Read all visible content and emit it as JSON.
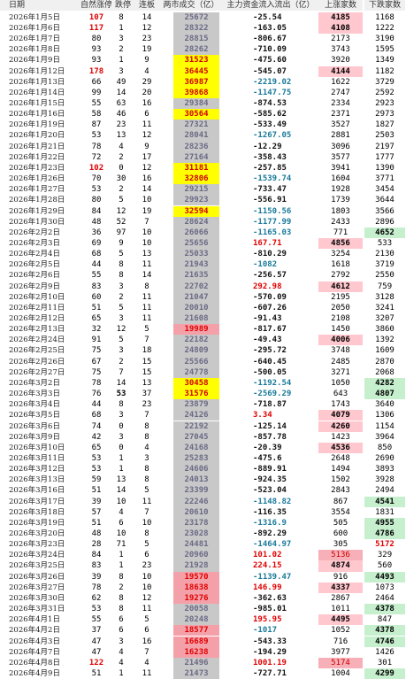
{
  "headers": [
    "日期",
    "自然涨停",
    "跌停",
    "连板",
    "两市成交（亿）",
    "主力资金流入流出（亿）",
    "上涨家数",
    "下跌家数"
  ],
  "rows": [
    {
      "date": "2026年1月5日",
      "lim": "107",
      "dn": "8",
      "lb": "14",
      "amt": "25672",
      "flow": "-25.54",
      "up": "4185",
      "down": "1168",
      "lim_red": true,
      "up_hl": "pink",
      "up_bold": true
    },
    {
      "date": "2026年1月6日",
      "lim": "117",
      "dn": "1",
      "lb": "12",
      "amt": "28322",
      "flow": "-163.05",
      "up": "4108",
      "down": "1222",
      "lim_red": true,
      "up_hl": "pink",
      "up_bold": true
    },
    {
      "date": "2026年1月7日",
      "lim": "80",
      "dn": "3",
      "lb": "23",
      "amt": "28815",
      "flow": "-806.67",
      "flow_bold": true,
      "up": "2173",
      "down": "3190"
    },
    {
      "date": "2026年1月8日",
      "lim": "93",
      "dn": "2",
      "lb": "19",
      "amt": "28262",
      "flow": "-710.09",
      "flow_bold": true,
      "up": "3743",
      "down": "1595"
    },
    {
      "date": "2026年1月9日",
      "lim": "93",
      "dn": "1",
      "lb": "9",
      "amt": "31523",
      "amt_hl": "yellow",
      "flow": "-475.60",
      "up": "3920",
      "down": "1349"
    },
    {
      "date": "2026年1月12日",
      "lim": "178",
      "dn": "3",
      "lb": "4",
      "amt": "36445",
      "amt_hl": "yellow",
      "flow": "-545.07",
      "flow_bold": true,
      "up": "4144",
      "down": "1182",
      "lim_red": true,
      "up_hl": "pink",
      "up_bold": true
    },
    {
      "date": "2026年1月13日",
      "lim": "66",
      "dn": "49",
      "lb": "29",
      "amt": "36987",
      "amt_hl": "yellow",
      "flow": "-2219.02",
      "flow_class": "negbig",
      "up": "1622",
      "down": "3729"
    },
    {
      "date": "2026年1月14日",
      "lim": "99",
      "dn": "14",
      "lb": "20",
      "amt": "39868",
      "amt_hl": "yellow",
      "flow": "-1147.75",
      "flow_class": "negbig",
      "up": "2747",
      "down": "2592"
    },
    {
      "date": "2026年1月15日",
      "lim": "55",
      "dn": "63",
      "lb": "16",
      "amt": "29384",
      "flow": "-874.53",
      "flow_bold": true,
      "up": "2334",
      "down": "2923"
    },
    {
      "date": "2026年1月16日",
      "lim": "58",
      "dn": "46",
      "lb": "6",
      "amt": "30564",
      "amt_hl": "yellow",
      "flow": "-585.62",
      "flow_bold": true,
      "up": "2371",
      "down": "2973"
    },
    {
      "date": "2026年1月19日",
      "lim": "87",
      "dn": "23",
      "lb": "11",
      "amt": "27321",
      "flow": "-533.49",
      "flow_bold": true,
      "up": "3527",
      "down": "1827"
    },
    {
      "date": "2026年1月20日",
      "lim": "53",
      "dn": "13",
      "lb": "12",
      "amt": "28041",
      "flow": "-1267.05",
      "flow_class": "negbig",
      "up": "2881",
      "down": "2503"
    },
    {
      "date": "2026年1月21日",
      "lim": "78",
      "dn": "4",
      "lb": "9",
      "amt": "28236",
      "flow": "-12.29",
      "up": "3096",
      "down": "2197"
    },
    {
      "date": "2026年1月22日",
      "lim": "72",
      "dn": "2",
      "lb": "17",
      "amt": "27164",
      "flow": "-358.43",
      "up": "3577",
      "down": "1777"
    },
    {
      "date": "2026年1月23日",
      "lim": "102",
      "dn": "0",
      "lb": "12",
      "amt": "31181",
      "amt_hl": "yellow",
      "flow": "-257.85",
      "up": "3941",
      "down": "1390",
      "lim_red": true
    },
    {
      "date": "2026年1月26日",
      "lim": "70",
      "dn": "30",
      "lb": "16",
      "amt": "32806",
      "amt_hl": "yellow",
      "flow": "-1539.74",
      "flow_class": "negbig",
      "up": "1604",
      "down": "3771"
    },
    {
      "date": "2026年1月27日",
      "lim": "53",
      "dn": "2",
      "lb": "14",
      "amt": "29215",
      "flow": "-733.47",
      "flow_bold": true,
      "up": "1928",
      "down": "3454"
    },
    {
      "date": "2026年1月28日",
      "lim": "80",
      "dn": "5",
      "lb": "10",
      "amt": "29923",
      "flow": "-556.91",
      "flow_bold": true,
      "up": "1739",
      "down": "3644"
    },
    {
      "date": "2026年1月29日",
      "lim": "84",
      "dn": "12",
      "lb": "19",
      "amt": "32594",
      "amt_hl": "yellow",
      "flow": "-1150.56",
      "flow_class": "negbig",
      "up": "1803",
      "down": "3566"
    },
    {
      "date": "2026年1月30日",
      "lim": "48",
      "dn": "52",
      "lb": "7",
      "amt": "28624",
      "flow": "-1177.99",
      "flow_class": "negbig",
      "up": "2433",
      "down": "2896"
    },
    {
      "date": "2026年2月2日",
      "lim": "36",
      "dn": "97",
      "lb": "10",
      "amt": "26066",
      "flow": "-1165.03",
      "flow_class": "negbig",
      "up": "771",
      "down": "4652",
      "down_hl": "green",
      "down_bold": true
    },
    {
      "date": "2026年2月3日",
      "lim": "69",
      "dn": "9",
      "lb": "10",
      "amt": "25656",
      "flow": "167.71",
      "flow_class": "posflow",
      "up": "4856",
      "down": "533",
      "up_hl": "pink",
      "up_bold": true
    },
    {
      "date": "2026年2月4日",
      "lim": "68",
      "dn": "5",
      "lb": "13",
      "amt": "25033",
      "flow": "-810.29",
      "flow_bold": true,
      "up": "3254",
      "down": "2130"
    },
    {
      "date": "2026年2月5日",
      "lim": "44",
      "dn": "8",
      "lb": "11",
      "amt": "21943",
      "flow": "-1082",
      "flow_class": "negbig",
      "up": "1618",
      "down": "3719"
    },
    {
      "date": "2026年2月6日",
      "lim": "55",
      "dn": "8",
      "lb": "14",
      "amt": "21635",
      "flow": "-256.57",
      "up": "2792",
      "down": "2550"
    },
    {
      "date": "2026年2月9日",
      "lim": "83",
      "dn": "3",
      "lb": "8",
      "amt": "22702",
      "flow": "292.98",
      "flow_class": "posflow",
      "up": "4612",
      "down": "759",
      "up_hl": "pink",
      "up_bold": true
    },
    {
      "date": "2026年2月10日",
      "lim": "60",
      "dn": "2",
      "lb": "11",
      "amt": "21047",
      "flow": "-570.09",
      "flow_bold": true,
      "up": "2195",
      "down": "3128"
    },
    {
      "date": "2026年2月11日",
      "lim": "51",
      "dn": "5",
      "lb": "11",
      "amt": "20010",
      "flow": "-607.26",
      "flow_bold": true,
      "up": "2050",
      "down": "3241"
    },
    {
      "date": "2026年2月12日",
      "lim": "65",
      "dn": "3",
      "lb": "11",
      "amt": "21608",
      "flow": "-91.43",
      "up": "2108",
      "down": "3207"
    },
    {
      "date": "2026年2月13日",
      "lim": "32",
      "dn": "12",
      "lb": "5",
      "amt": "19989",
      "amt_hl": "lpink",
      "flow": "-817.67",
      "up": "1450",
      "down": "3860"
    },
    {
      "date": "2026年2月24日",
      "lim": "91",
      "dn": "5",
      "lb": "7",
      "amt": "22182",
      "flow": "-49.43",
      "up": "4006",
      "down": "1392",
      "up_hl": "pink",
      "up_bold": true
    },
    {
      "date": "2026年2月25日",
      "lim": "75",
      "dn": "3",
      "lb": "18",
      "amt": "24809",
      "flow": "-295.72",
      "up": "3748",
      "down": "1609"
    },
    {
      "date": "2026年2月26日",
      "lim": "67",
      "dn": "2",
      "lb": "15",
      "amt": "25566",
      "flow": "-640.45",
      "flow_bold": true,
      "up": "2485",
      "down": "2870"
    },
    {
      "date": "2026年2月27日",
      "lim": "75",
      "dn": "7",
      "lb": "15",
      "amt": "24778",
      "flow": "-500.05",
      "up": "3271",
      "down": "2068"
    },
    {
      "date": "2026年3月2日",
      "lim": "78",
      "dn": "14",
      "lb": "13",
      "amt": "30458",
      "amt_hl": "yellow",
      "flow": "-1192.54",
      "flow_class": "negbig",
      "up": "1050",
      "down": "4282",
      "down_hl": "green",
      "down_bold": true
    },
    {
      "date": "2026年3月3日",
      "lim": "76",
      "dn": "53",
      "lb": "37",
      "amt": "31576",
      "amt_hl": "yellow",
      "flow": "-2569.29",
      "flow_class": "negbig",
      "up": "643",
      "down": "4807",
      "dn_bold": true,
      "down_hl": "green",
      "down_bold": true
    },
    {
      "date": "2026年3月4日",
      "lim": "44",
      "dn": "8",
      "lb": "23",
      "amt": "23879",
      "flow": "-718.87",
      "flow_bold": true,
      "up": "1743",
      "down": "3640"
    },
    {
      "date": "2026年3月5日",
      "lim": "68",
      "dn": "3",
      "lb": "7",
      "amt": "24126",
      "flow": "3.34",
      "flow_class": "posflow",
      "up": "4079",
      "down": "1306",
      "up_hl": "pink",
      "up_bold": true
    },
    {
      "date": "2026年3月6日",
      "lim": "74",
      "dn": "0",
      "lb": "8",
      "amt": "22192",
      "flow": "-125.14",
      "up": "4260",
      "down": "1154",
      "up_hl": "pink",
      "up_bold": true
    },
    {
      "date": "2026年3月9日",
      "lim": "42",
      "dn": "3",
      "lb": "8",
      "amt": "27045",
      "flow": "-857.78",
      "flow_bold": true,
      "up": "1423",
      "down": "3964"
    },
    {
      "date": "2026年3月10日",
      "lim": "65",
      "dn": "0",
      "lb": "4",
      "amt": "24168",
      "flow": "-20.39",
      "up": "4536",
      "down": "850",
      "up_hl": "pink",
      "up_bold": true
    },
    {
      "date": "2026年3月11日",
      "lim": "53",
      "dn": "1",
      "lb": "3",
      "amt": "25283",
      "flow": "-475.6",
      "up": "2648",
      "down": "2690"
    },
    {
      "date": "2026年3月12日",
      "lim": "53",
      "dn": "1",
      "lb": "8",
      "amt": "24606",
      "flow": "-889.91",
      "flow_bold": true,
      "up": "1494",
      "down": "3893"
    },
    {
      "date": "2026年3月13日",
      "lim": "59",
      "dn": "13",
      "lb": "8",
      "amt": "24013",
      "flow": "-924.35",
      "flow_bold": true,
      "up": "1502",
      "down": "3928"
    },
    {
      "date": "2026年3月16日",
      "lim": "51",
      "dn": "14",
      "lb": "5",
      "amt": "23399",
      "flow": "-523.04",
      "flow_bold": true,
      "up": "2843",
      "down": "2494"
    },
    {
      "date": "2026年3月17日",
      "lim": "39",
      "dn": "10",
      "lb": "11",
      "amt": "22246",
      "flow": "-1148.82",
      "flow_class": "negbig",
      "up": "867",
      "down": "4541",
      "down_hl": "green",
      "down_bold": true
    },
    {
      "date": "2026年3月18日",
      "lim": "57",
      "dn": "4",
      "lb": "7",
      "amt": "20610",
      "flow": "-116.35",
      "up": "3554",
      "down": "1831"
    },
    {
      "date": "2026年3月19日",
      "lim": "51",
      "dn": "6",
      "lb": "10",
      "amt": "23178",
      "flow": "-1316.9",
      "flow_class": "negbig",
      "up": "505",
      "down": "4955",
      "down_hl": "green",
      "down_bold": true
    },
    {
      "date": "2026年3月20日",
      "lim": "48",
      "dn": "10",
      "lb": "8",
      "amt": "23028",
      "flow": "-892.29",
      "flow_bold": true,
      "up": "600",
      "down": "4786",
      "down_hl": "green",
      "down_bold": true
    },
    {
      "date": "2026年3月23日",
      "lim": "28",
      "dn": "71",
      "lb": "5",
      "amt": "24481",
      "flow": "-1464.97",
      "flow_class": "negbig",
      "up": "305",
      "down": "5172",
      "down_red": true
    },
    {
      "date": "2026年3月24日",
      "lim": "84",
      "dn": "1",
      "lb": "6",
      "amt": "20960",
      "flow": "101.02",
      "flow_class": "posflow",
      "up": "5136",
      "down": "329",
      "up_hl": "redcell"
    },
    {
      "date": "2026年3月25日",
      "lim": "83",
      "dn": "1",
      "lb": "23",
      "amt": "21928",
      "flow": "224.15",
      "flow_class": "posflow",
      "up": "4874",
      "down": "560",
      "up_hl": "pink",
      "up_bold": true
    },
    {
      "date": "2026年3月26日",
      "lim": "39",
      "dn": "8",
      "lb": "10",
      "amt": "19570",
      "amt_hl": "lpink",
      "flow": "-1139.47",
      "flow_class": "negbig",
      "up": "916",
      "down": "4493",
      "down_hl": "green",
      "down_bold": true
    },
    {
      "date": "2026年3月27日",
      "lim": "78",
      "dn": "2",
      "lb": "10",
      "amt": "18638",
      "amt_hl": "lpink",
      "flow": "146.99",
      "flow_class": "posflow",
      "up": "4337",
      "down": "1073",
      "up_hl": "pink",
      "up_bold": true
    },
    {
      "date": "2026年3月30日",
      "lim": "62",
      "dn": "8",
      "lb": "12",
      "amt": "19276",
      "amt_hl": "lpink",
      "flow": "-362.63",
      "up": "2867",
      "down": "2464"
    },
    {
      "date": "2026年3月31日",
      "lim": "53",
      "dn": "8",
      "lb": "11",
      "amt": "20058",
      "flow": "-985.01",
      "flow_bold": true,
      "up": "1011",
      "down": "4378",
      "down_hl": "green",
      "down_bold": true
    },
    {
      "date": "2026年4月1日",
      "lim": "55",
      "dn": "6",
      "lb": "5",
      "amt": "20248",
      "flow": "195.95",
      "flow_class": "posflow",
      "up": "4495",
      "down": "847",
      "up_hl": "pink",
      "up_bold": true
    },
    {
      "date": "2026年4月2日",
      "lim": "37",
      "dn": "6",
      "lb": "6",
      "amt": "18577",
      "amt_hl": "lpink",
      "flow": "-1017",
      "flow_class": "negbig",
      "up": "1052",
      "down": "4378",
      "down_hl": "green",
      "down_bold": true
    },
    {
      "date": "2026年4月3日",
      "lim": "47",
      "dn": "3",
      "lb": "16",
      "amt": "16689",
      "amt_hl": "lpink",
      "flow": "-543.33",
      "flow_bold": true,
      "up": "716",
      "down": "4746",
      "down_hl": "green",
      "down_bold": true
    },
    {
      "date": "2026年4月7日",
      "lim": "47",
      "dn": "4",
      "lb": "7",
      "amt": "16238",
      "amt_hl": "lpink",
      "flow": "-194.29",
      "up": "3977",
      "down": "1426"
    },
    {
      "date": "2026年4月8日",
      "lim": "122",
      "dn": "4",
      "lb": "4",
      "amt": "21496",
      "flow": "1001.19",
      "flow_class": "posflow",
      "up": "5174",
      "down": "301",
      "lim_red": true,
      "up_hl": "redcell"
    },
    {
      "date": "2026年4月9日",
      "lim": "51",
      "dn": "1",
      "lb": "11",
      "amt": "21473",
      "flow": "-727.71",
      "flow_bold": true,
      "up": "1004",
      "down": "4299",
      "down_hl": "green",
      "down_bold": true
    }
  ]
}
